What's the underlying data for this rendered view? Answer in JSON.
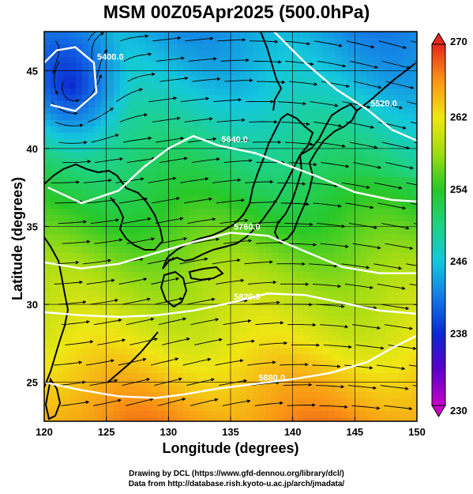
{
  "title": "MSM 00Z05Apr2025 (500.0hPa)",
  "xlabel": "Longitude (degrees)",
  "ylabel": "Latitude  (degrees)",
  "credits": [
    "Drawing by DCL (https://www.gfd-dennou.org/library/dcl/)",
    "Data from http://database.rish.kyoto-u.ac.jp/arch/jmadata/"
  ],
  "chart_data": {
    "type": "heatmap",
    "title": "MSM 00Z05Apr2025 (500.0hPa)",
    "xlabel": "Longitude (degrees)",
    "ylabel": "Latitude  (degrees)",
    "xlim": [
      120,
      150
    ],
    "ylim": [
      22.5,
      47.5
    ],
    "x_ticks": [
      "120",
      "125",
      "130",
      "135",
      "140",
      "145",
      "150"
    ],
    "y_ticks": [
      "25",
      "30",
      "35",
      "40",
      "45"
    ],
    "grid": true,
    "colorbar": {
      "min": 230,
      "max": 270,
      "ticks": [
        "270",
        "262",
        "254",
        "246",
        "238",
        "230"
      ],
      "extends": "both"
    },
    "color_field": "temperature",
    "vector_field": "wind streamlines",
    "contours": [
      {
        "label": "5400.0",
        "points": [
          [
            120,
            45.5
          ],
          [
            121,
            46.3
          ],
          [
            122.5,
            46.5
          ],
          [
            124,
            45.5
          ],
          [
            124.2,
            43.6
          ],
          [
            122.5,
            42.4
          ],
          [
            120.5,
            42.8
          ]
        ]
      },
      {
        "label": "5520.0",
        "points": [
          [
            138.5,
            47.5
          ],
          [
            141,
            45.5
          ],
          [
            143.5,
            43.8
          ],
          [
            146,
            42.5
          ],
          [
            148,
            41.2
          ],
          [
            150,
            40.5
          ]
        ]
      },
      {
        "label": "5640.0",
        "points": [
          [
            120.3,
            37.5
          ],
          [
            123,
            36.5
          ],
          [
            126,
            37.3
          ],
          [
            128,
            38.8
          ],
          [
            130,
            40
          ],
          [
            132,
            40.8
          ],
          [
            134,
            40.2
          ],
          [
            137,
            39.7
          ],
          [
            140,
            38.8
          ],
          [
            142,
            38.2
          ],
          [
            145,
            37.2
          ],
          [
            148,
            36.7
          ],
          [
            150,
            36.6
          ]
        ]
      },
      {
        "label": "5760.0",
        "points": [
          [
            120,
            32.7
          ],
          [
            123,
            32.3
          ],
          [
            126,
            32.6
          ],
          [
            129,
            33.3
          ],
          [
            132,
            34
          ],
          [
            135,
            34.6
          ],
          [
            138,
            34.4
          ],
          [
            141,
            33.4
          ],
          [
            144,
            32.4
          ],
          [
            147,
            32
          ],
          [
            150,
            32
          ]
        ]
      },
      {
        "label": "5820.0",
        "points": [
          [
            120,
            29.5
          ],
          [
            123,
            29.3
          ],
          [
            126,
            29.2
          ],
          [
            129,
            29.3
          ],
          [
            132,
            29.6
          ],
          [
            135,
            30.1
          ],
          [
            138,
            30.7
          ],
          [
            141,
            30.6
          ],
          [
            144,
            30.1
          ],
          [
            147,
            29.6
          ],
          [
            150,
            29.4
          ]
        ]
      },
      {
        "label": "5880.0",
        "points": [
          [
            120,
            25
          ],
          [
            123,
            24.5
          ],
          [
            126,
            24.1
          ],
          [
            129,
            24
          ],
          [
            131,
            24.2
          ],
          [
            134,
            24.6
          ],
          [
            137,
            24.9
          ],
          [
            140,
            25.2
          ],
          [
            143,
            25.6
          ],
          [
            146,
            26.3
          ],
          [
            148,
            27.2
          ],
          [
            150,
            28
          ]
        ]
      }
    ],
    "temperature_profile": [
      {
        "lat": 47.5,
        "value": 244
      },
      {
        "lat": 44,
        "value": 246
      },
      {
        "lat": 40,
        "value": 250
      },
      {
        "lat": 36,
        "value": 254
      },
      {
        "lat": 32,
        "value": 258
      },
      {
        "lat": 28,
        "value": 261
      },
      {
        "lat": 25,
        "value": 264
      },
      {
        "lat": 22.5,
        "value": 266
      }
    ],
    "cold_core": {
      "lon": 122.2,
      "lat": 44,
      "value": 240
    }
  },
  "colors": {
    "contour": "#ffffff",
    "coast": "#000000",
    "streamline": "#000000"
  }
}
